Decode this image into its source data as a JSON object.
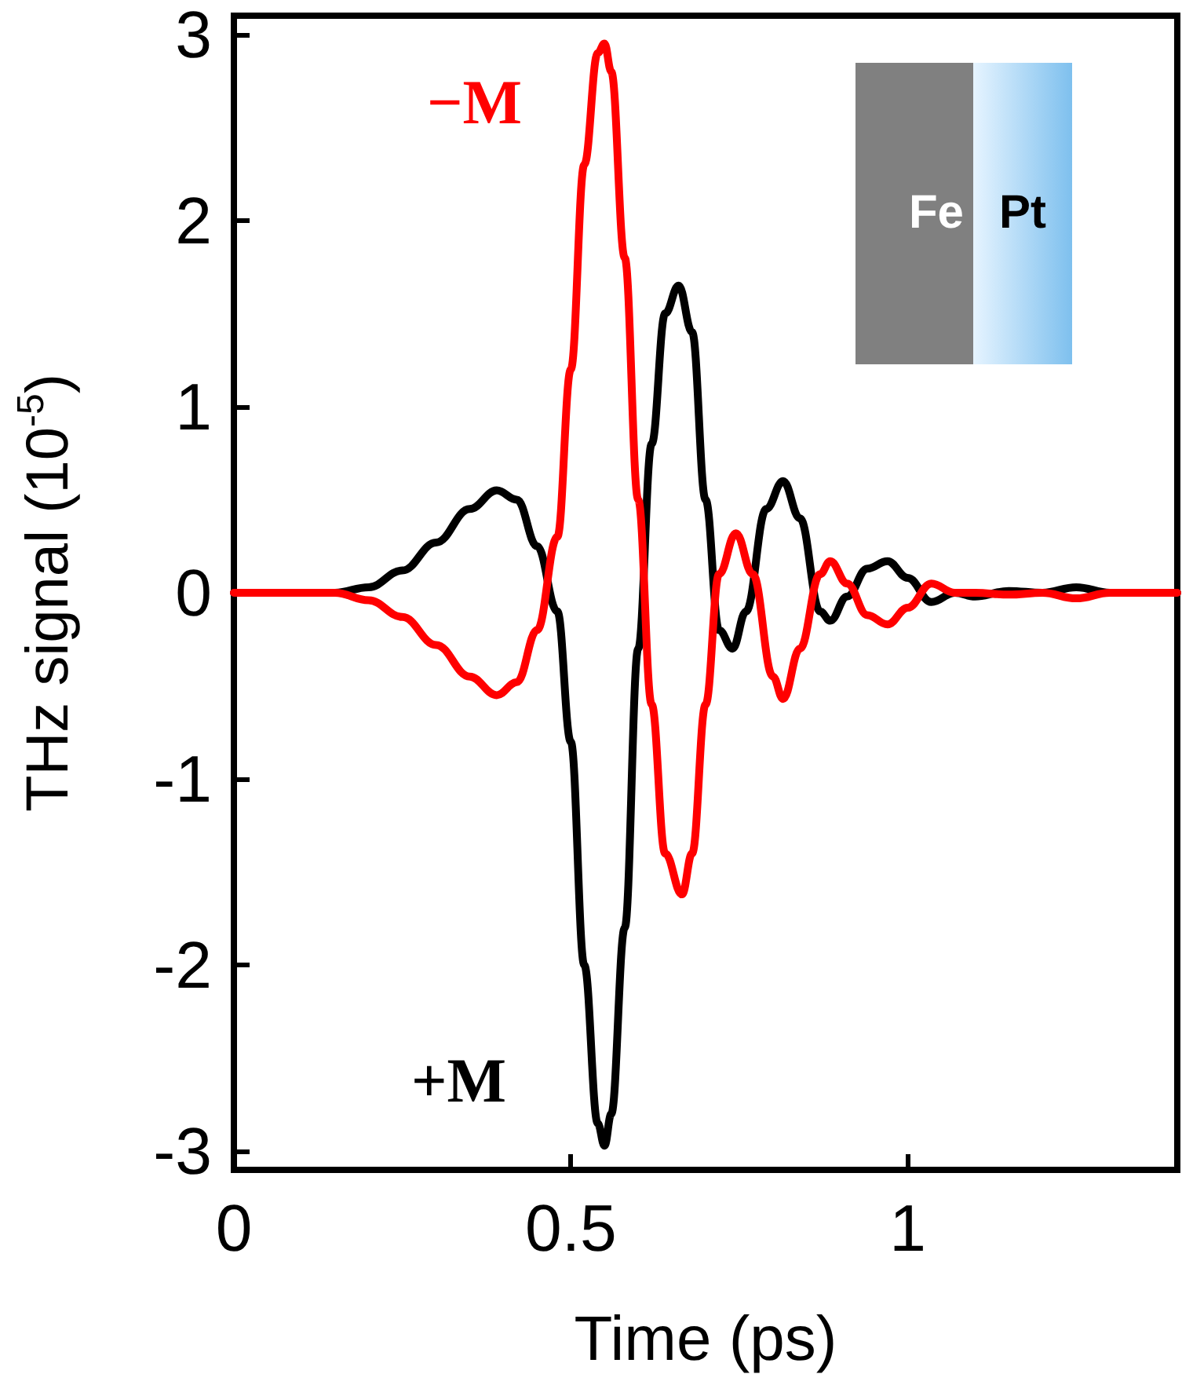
{
  "chart_data": {
    "type": "line",
    "xlabel": "Time (ps)",
    "ylabel": "THz signal (10$^{-5}$)",
    "xlim": [
      0,
      1.4
    ],
    "xticks": [
      0,
      0.5,
      1
    ],
    "ylim": [
      -3.1,
      3.1
    ],
    "yticks": [
      -3,
      -2,
      -1,
      0,
      1,
      2,
      3
    ],
    "grid": false,
    "legend": false,
    "marker": "none",
    "line_style": "solid",
    "annotations": [
      "Fe",
      "Pt"
    ],
    "series": [
      {
        "name": "+M",
        "color": "#000000",
        "x": [
          0,
          0.1,
          0.15,
          0.2,
          0.25,
          0.3,
          0.35,
          0.39,
          0.42,
          0.45,
          0.48,
          0.5,
          0.52,
          0.54,
          0.55,
          0.56,
          0.58,
          0.6,
          0.62,
          0.64,
          0.66,
          0.68,
          0.7,
          0.72,
          0.74,
          0.76,
          0.79,
          0.815,
          0.84,
          0.87,
          0.885,
          0.91,
          0.94,
          0.97,
          1.0,
          1.035,
          1.07,
          1.1,
          1.15,
          1.2,
          1.25,
          1.3,
          1.4
        ],
        "values": [
          0,
          0,
          0,
          0.03,
          0.12,
          0.27,
          0.45,
          0.55,
          0.5,
          0.25,
          -0.1,
          -0.8,
          -2.0,
          -2.85,
          -2.97,
          -2.8,
          -1.8,
          -0.3,
          0.8,
          1.5,
          1.65,
          1.4,
          0.5,
          -0.2,
          -0.3,
          -0.1,
          0.45,
          0.6,
          0.4,
          -0.1,
          -0.15,
          -0.02,
          0.13,
          0.17,
          0.08,
          -0.05,
          0,
          -0.02,
          0.01,
          0,
          0.03,
          0,
          0
        ]
      },
      {
        "name": "−M",
        "color": "#ff0000",
        "x": [
          0,
          0.15,
          0.2,
          0.25,
          0.3,
          0.35,
          0.39,
          0.42,
          0.45,
          0.48,
          0.5,
          0.52,
          0.54,
          0.55,
          0.56,
          0.58,
          0.6,
          0.62,
          0.64,
          0.665,
          0.68,
          0.7,
          0.72,
          0.745,
          0.77,
          0.8,
          0.815,
          0.84,
          0.87,
          0.885,
          0.91,
          0.94,
          0.97,
          1.0,
          1.035,
          1.07,
          1.1,
          1.15,
          1.2,
          1.25,
          1.3,
          1.4
        ],
        "values": [
          0,
          0,
          -0.04,
          -0.13,
          -0.28,
          -0.45,
          -0.55,
          -0.48,
          -0.2,
          0.3,
          1.2,
          2.3,
          2.9,
          2.95,
          2.8,
          1.8,
          0.5,
          -0.6,
          -1.4,
          -1.62,
          -1.4,
          -0.6,
          0.1,
          0.32,
          0.1,
          -0.45,
          -0.57,
          -0.3,
          0.1,
          0.17,
          0.05,
          -0.12,
          -0.17,
          -0.08,
          0.05,
          0,
          0,
          -0.01,
          0,
          -0.03,
          0,
          0
        ]
      }
    ]
  }
}
